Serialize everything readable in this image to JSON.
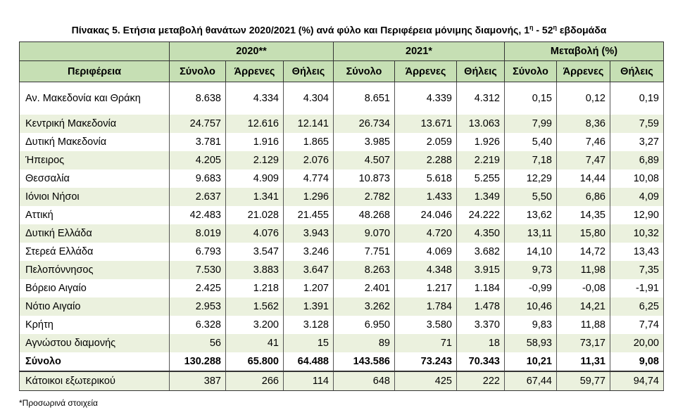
{
  "title": "Πίνακας 5. Ετήσια μεταβολή θανάτων 2020/2021 (%) ανά φύλο και Περιφέρεια μόνιμης διαμονής, 1",
  "title_sup1": "η",
  "title_mid": " - 52",
  "title_sup2": "η",
  "title_end": " εβδομάδα",
  "groups": [
    "2020**",
    "2021*",
    "Μεταβολή (%)"
  ],
  "region_header": "Περιφέρεια",
  "sub_headers": [
    "Σύνολο",
    "Άρρενες",
    "Θήλεις",
    "Σύνολο",
    "Άρρενες",
    "Θήλεις",
    "Σύνολο",
    "Άρρενες",
    "Θήλεις"
  ],
  "rows": [
    {
      "name": "Αν. Μακεδονία και Θράκη",
      "v": [
        "8.638",
        "4.334",
        "4.304",
        "8.651",
        "4.339",
        "4.312",
        "0,15",
        "0,12",
        "0,19"
      ]
    },
    {
      "name": "Κεντρική Μακεδονία",
      "v": [
        "24.757",
        "12.616",
        "12.141",
        "26.734",
        "13.671",
        "13.063",
        "7,99",
        "8,36",
        "7,59"
      ]
    },
    {
      "name": "Δυτική Μακεδονία",
      "v": [
        "3.781",
        "1.916",
        "1.865",
        "3.985",
        "2.059",
        "1.926",
        "5,40",
        "7,46",
        "3,27"
      ]
    },
    {
      "name": "Ήπειρος",
      "v": [
        "4.205",
        "2.129",
        "2.076",
        "4.507",
        "2.288",
        "2.219",
        "7,18",
        "7,47",
        "6,89"
      ]
    },
    {
      "name": "Θεσσαλία",
      "v": [
        "9.683",
        "4.909",
        "4.774",
        "10.873",
        "5.618",
        "5.255",
        "12,29",
        "14,44",
        "10,08"
      ]
    },
    {
      "name": "Ιόνιοι Νήσοι",
      "v": [
        "2.637",
        "1.341",
        "1.296",
        "2.782",
        "1.433",
        "1.349",
        "5,50",
        "6,86",
        "4,09"
      ]
    },
    {
      "name": "Αττική",
      "v": [
        "42.483",
        "21.028",
        "21.455",
        "48.268",
        "24.046",
        "24.222",
        "13,62",
        "14,35",
        "12,90"
      ]
    },
    {
      "name": "Δυτική Ελλάδα",
      "v": [
        "8.019",
        "4.076",
        "3.943",
        "9.070",
        "4.720",
        "4.350",
        "13,11",
        "15,80",
        "10,32"
      ]
    },
    {
      "name": "Στερεά Ελλάδα",
      "v": [
        "6.793",
        "3.547",
        "3.246",
        "7.751",
        "4.069",
        "3.682",
        "14,10",
        "14,72",
        "13,43"
      ]
    },
    {
      "name": "Πελοπόννησος",
      "v": [
        "7.530",
        "3.883",
        "3.647",
        "8.263",
        "4.348",
        "3.915",
        "9,73",
        "11,98",
        "7,35"
      ]
    },
    {
      "name": "Βόρειο Αιγαίο",
      "v": [
        "2.425",
        "1.218",
        "1.207",
        "2.401",
        "1.217",
        "1.184",
        "-0,99",
        "-0,08",
        "-1,91"
      ]
    },
    {
      "name": "Νότιο Αιγαίο",
      "v": [
        "2.953",
        "1.562",
        "1.391",
        "3.262",
        "1.784",
        "1.478",
        "10,46",
        "14,21",
        "6,25"
      ]
    },
    {
      "name": "Κρήτη",
      "v": [
        "6.328",
        "3.200",
        "3.128",
        "6.950",
        "3.580",
        "3.370",
        "9,83",
        "11,88",
        "7,74"
      ]
    },
    {
      "name": "Αγνώστου διαμονής",
      "v": [
        "56",
        "41",
        "15",
        "89",
        "71",
        "18",
        "58,93",
        "73,17",
        "20,00"
      ]
    },
    {
      "name": "Σύνολο",
      "v": [
        "130.288",
        "65.800",
        "64.488",
        "143.586",
        "73.243",
        "70.343",
        "10,21",
        "11,31",
        "9,08"
      ]
    },
    {
      "name": "Κάτοικοι εξωτερικού",
      "v": [
        "387",
        "266",
        "114",
        "648",
        "425",
        "222",
        "67,44",
        "59,77",
        "94,74"
      ]
    }
  ],
  "footnote": "*Προσωρινά στοιχεία"
}
